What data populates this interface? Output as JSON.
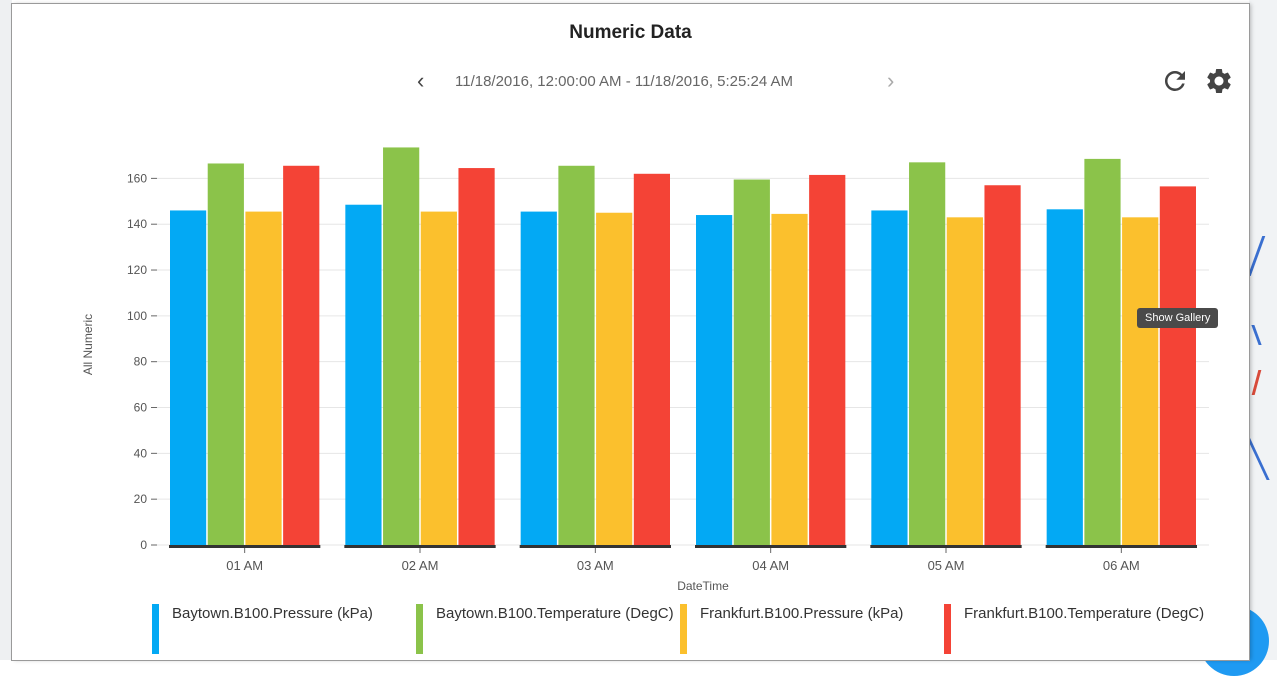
{
  "header": {
    "title": "Numeric Data",
    "date_range": "11/18/2016, 12:00:00 AM - 11/18/2016, 5:25:24 AM",
    "prev_icon": "chevron-left-icon",
    "next_icon": "chevron-right-icon",
    "refresh_icon": "refresh-icon",
    "settings_icon": "gear-icon"
  },
  "tooltip": {
    "text": "Show Gallery"
  },
  "colors": {
    "series": [
      "#03a9f4",
      "#8bc34a",
      "#fbc02d",
      "#f44336"
    ],
    "axis": "#333333",
    "grid": "#e6e6e6"
  },
  "chart_data": {
    "type": "bar",
    "categories": [
      "01 AM",
      "02 AM",
      "03 AM",
      "04 AM",
      "05 AM",
      "06 AM"
    ],
    "series": [
      {
        "name": "Baytown.B100.Pressure (kPa)",
        "values": [
          146,
          148.5,
          145.5,
          144,
          146,
          146.5
        ]
      },
      {
        "name": "Baytown.B100.Temperature (DegC)",
        "values": [
          166.5,
          173.5,
          165.5,
          159.5,
          167,
          168.5
        ]
      },
      {
        "name": "Frankfurt.B100.Pressure (kPa)",
        "values": [
          145.5,
          145.5,
          145,
          144.5,
          143,
          143
        ]
      },
      {
        "name": "Frankfurt.B100.Temperature (DegC)",
        "values": [
          165.5,
          164.5,
          162,
          161.5,
          157,
          156.5
        ]
      }
    ],
    "xlabel": "DateTime",
    "ylabel": "All Numeric",
    "yticks": [
      0,
      20,
      40,
      60,
      80,
      100,
      120,
      140,
      160
    ],
    "ylim": [
      0,
      175
    ],
    "grid": true,
    "legend_position": "bottom"
  }
}
